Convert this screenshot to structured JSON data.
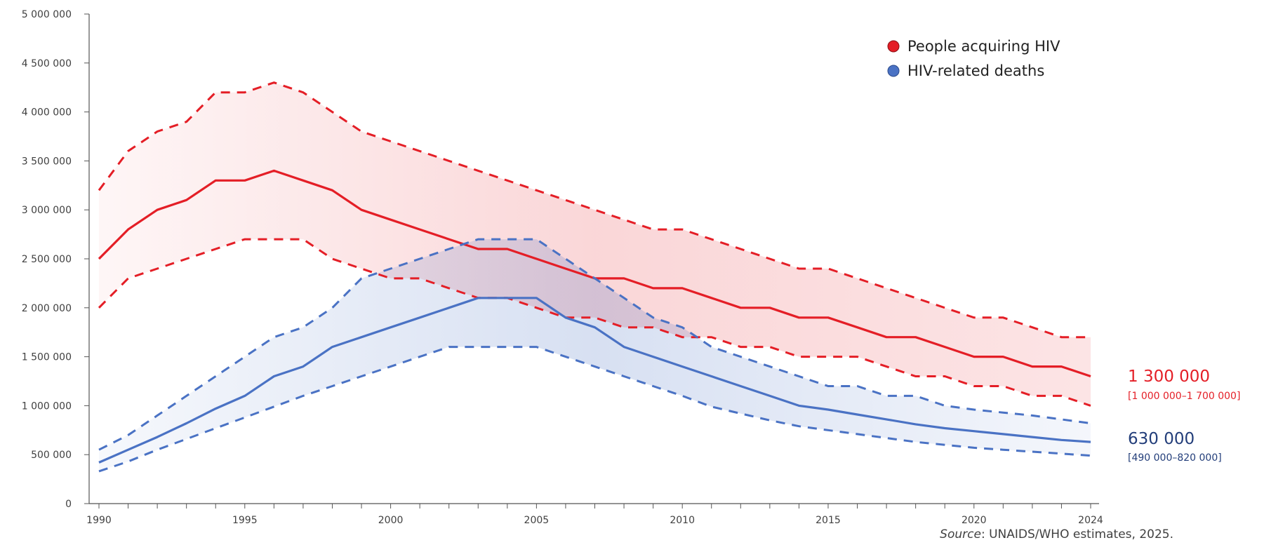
{
  "chart_data": {
    "type": "line",
    "x": [
      1990,
      1991,
      1992,
      1993,
      1994,
      1995,
      1996,
      1997,
      1998,
      1999,
      2000,
      2001,
      2002,
      2003,
      2004,
      2005,
      2006,
      2007,
      2008,
      2009,
      2010,
      2011,
      2012,
      2013,
      2014,
      2015,
      2016,
      2017,
      2018,
      2019,
      2020,
      2021,
      2022,
      2023,
      2024
    ],
    "xticks": [
      "1990",
      "1995",
      "2000",
      "2005",
      "2010",
      "2015",
      "2020",
      "2024"
    ],
    "yticks": [
      "0",
      "500 000",
      "1 000 000",
      "1 500 000",
      "2 000 000",
      "2 500 000",
      "3 000 000",
      "3 500 000",
      "4 000 000",
      "4 500 000",
      "5 000 000"
    ],
    "ylim": [
      0,
      5000000
    ],
    "xlim": [
      1990,
      2024
    ],
    "grid": false,
    "legend_position": "top-right",
    "series": [
      {
        "name": "People acquiring HIV",
        "color": "#e41e26",
        "values": [
          2500000,
          2800000,
          3000000,
          3100000,
          3300000,
          3300000,
          3400000,
          3300000,
          3200000,
          3000000,
          2900000,
          2800000,
          2700000,
          2600000,
          2600000,
          2500000,
          2400000,
          2300000,
          2300000,
          2200000,
          2200000,
          2100000,
          2000000,
          2000000,
          1900000,
          1900000,
          1800000,
          1700000,
          1700000,
          1600000,
          1500000,
          1500000,
          1400000,
          1400000,
          1300000
        ],
        "upper": [
          3200000,
          3600000,
          3800000,
          3900000,
          4200000,
          4200000,
          4300000,
          4200000,
          4000000,
          3800000,
          3700000,
          3600000,
          3500000,
          3400000,
          3300000,
          3200000,
          3100000,
          3000000,
          2900000,
          2800000,
          2800000,
          2700000,
          2600000,
          2500000,
          2400000,
          2400000,
          2300000,
          2200000,
          2100000,
          2000000,
          1900000,
          1900000,
          1800000,
          1700000,
          1700000
        ],
        "lower": [
          2000000,
          2300000,
          2400000,
          2500000,
          2600000,
          2700000,
          2700000,
          2700000,
          2500000,
          2400000,
          2300000,
          2300000,
          2200000,
          2100000,
          2100000,
          2000000,
          1900000,
          1900000,
          1800000,
          1800000,
          1700000,
          1700000,
          1600000,
          1600000,
          1500000,
          1500000,
          1500000,
          1400000,
          1300000,
          1300000,
          1200000,
          1200000,
          1100000,
          1100000,
          1000000
        ],
        "end_value": "1 300 000",
        "end_range": "[1 000 000–1 700 000]"
      },
      {
        "name": "HIV-related deaths",
        "color": "#4a72c4",
        "end_color": "#233e7a",
        "values": [
          420000,
          550000,
          680000,
          820000,
          970000,
          1100000,
          1300000,
          1400000,
          1600000,
          1700000,
          1800000,
          1900000,
          2000000,
          2100000,
          2100000,
          2100000,
          1900000,
          1800000,
          1600000,
          1500000,
          1400000,
          1300000,
          1200000,
          1100000,
          1000000,
          960000,
          910000,
          860000,
          810000,
          770000,
          740000,
          710000,
          680000,
          650000,
          630000
        ],
        "upper": [
          550000,
          700000,
          900000,
          1100000,
          1300000,
          1500000,
          1700000,
          1800000,
          2000000,
          2300000,
          2400000,
          2500000,
          2600000,
          2700000,
          2700000,
          2700000,
          2500000,
          2300000,
          2100000,
          1900000,
          1800000,
          1600000,
          1500000,
          1400000,
          1300000,
          1200000,
          1200000,
          1100000,
          1100000,
          1000000,
          960000,
          930000,
          900000,
          860000,
          820000
        ],
        "lower": [
          330000,
          430000,
          550000,
          660000,
          770000,
          880000,
          990000,
          1100000,
          1200000,
          1300000,
          1400000,
          1500000,
          1600000,
          1600000,
          1600000,
          1600000,
          1500000,
          1400000,
          1300000,
          1200000,
          1100000,
          990000,
          920000,
          850000,
          790000,
          750000,
          710000,
          670000,
          630000,
          600000,
          570000,
          550000,
          530000,
          510000,
          490000
        ],
        "end_value": "630 000",
        "end_range": "[490 000–820 000]"
      }
    ]
  },
  "source": {
    "label": "Source",
    "text": ": UNAIDS/WHO estimates, 2025."
  }
}
